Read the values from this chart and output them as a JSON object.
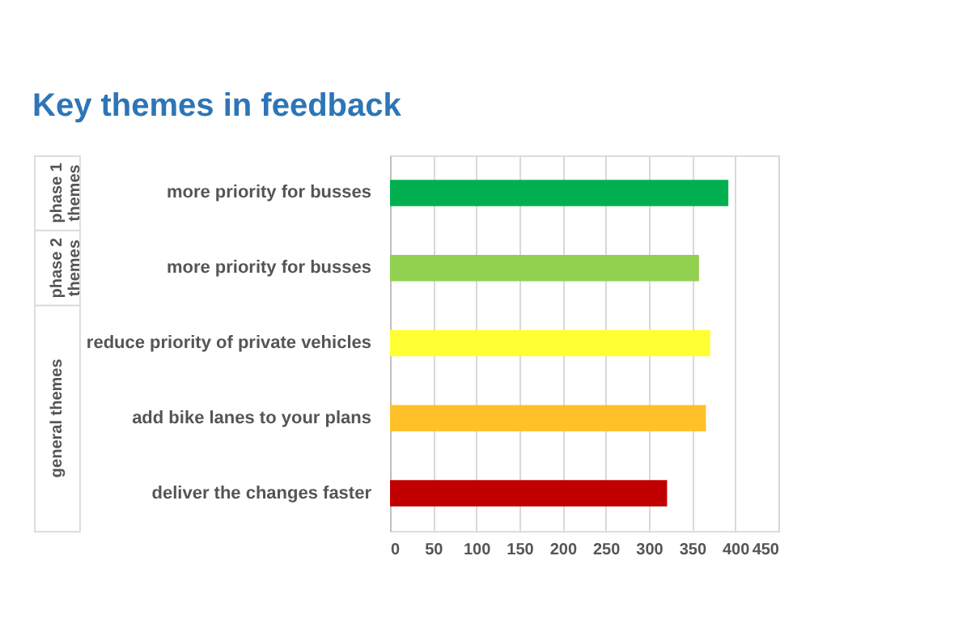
{
  "chart_data": {
    "type": "bar",
    "orientation": "horizontal",
    "title": "Key themes in feedback",
    "categories": [
      "more priority for busses",
      "more priority for busses",
      "reduce priority of private vehicles",
      "add bike lanes to your plans",
      "deliver the changes faster"
    ],
    "values": [
      392,
      358,
      371,
      366,
      321
    ],
    "colors": [
      "#00b050",
      "#92d050",
      "#ffff33",
      "#ffc02a",
      "#c00000"
    ],
    "annotations": [
      "phase 1 themes",
      "phase 2 themes",
      "general themes"
    ],
    "xlim": [
      0,
      450
    ],
    "xticks": [
      0,
      50,
      100,
      150,
      200,
      250,
      300,
      350,
      400,
      450
    ],
    "grid": "x"
  }
}
